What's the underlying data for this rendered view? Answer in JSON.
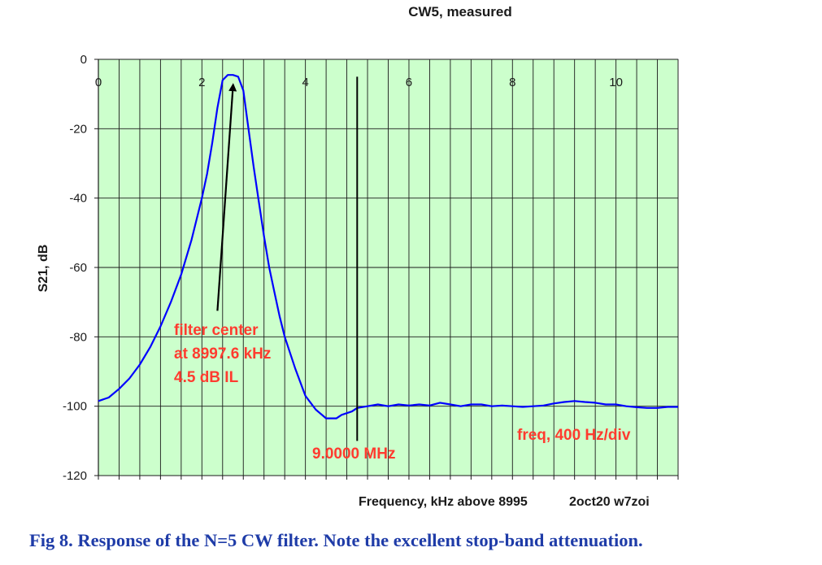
{
  "chart_data": {
    "type": "line",
    "title": "CW5, measured",
    "xlabel": "Frequency, kHz above 8995",
    "xlabel_note": "2oct20  w7zoi",
    "ylabel": "S21, dB",
    "xlim": [
      0,
      11.2
    ],
    "ylim": [
      -120,
      0
    ],
    "x_ticks": [
      0,
      2,
      4,
      6,
      8,
      10
    ],
    "x_minor_step": 0.4,
    "y_ticks": [
      0,
      -20,
      -40,
      -60,
      -80,
      -100,
      -120
    ],
    "y_grid_step": 20,
    "grid": true,
    "background_color": "#ccffcc",
    "grid_color": "#1a1a1a",
    "series": [
      {
        "color": "#0000ff",
        "x": [
          0,
          0.2,
          0.4,
          0.6,
          0.8,
          1.0,
          1.2,
          1.4,
          1.6,
          1.8,
          2.0,
          2.1,
          2.2,
          2.3,
          2.4,
          2.5,
          2.6,
          2.7,
          2.8,
          2.9,
          3.0,
          3.1,
          3.2,
          3.3,
          3.4,
          3.5,
          3.6,
          3.8,
          4.0,
          4.2,
          4.4,
          4.6,
          4.7,
          4.8,
          4.9,
          5.0,
          5.2,
          5.4,
          5.6,
          5.8,
          6.0,
          6.2,
          6.4,
          6.6,
          6.8,
          7.0,
          7.2,
          7.4,
          7.6,
          7.8,
          8.0,
          8.2,
          8.4,
          8.6,
          8.8,
          9.0,
          9.2,
          9.4,
          9.6,
          9.8,
          10.0,
          10.2,
          10.4,
          10.6,
          10.8,
          11.0,
          11.2
        ],
        "y": [
          -98.5,
          -97.5,
          -95,
          -92,
          -88,
          -83,
          -77,
          -70,
          -62,
          -52,
          -40,
          -33,
          -24,
          -14,
          -6,
          -4.5,
          -4.5,
          -5,
          -9,
          -20,
          -31,
          -41,
          -51,
          -60,
          -67,
          -74,
          -80,
          -89,
          -97,
          -101,
          -103.5,
          -103.5,
          -102.5,
          -102,
          -101.5,
          -100.5,
          -100,
          -99.5,
          -100,
          -99.5,
          -99.8,
          -99.5,
          -99.8,
          -99,
          -99.5,
          -100,
          -99.5,
          -99.5,
          -100,
          -99.8,
          -100,
          -100.2,
          -100,
          -99.8,
          -99.2,
          -98.8,
          -98.5,
          -98.8,
          -99,
          -99.5,
          -99.5,
          -100,
          -100.3,
          -100.5,
          -100.5,
          -100.2,
          -100.2
        ]
      }
    ],
    "annotations": [
      {
        "text": "filter center",
        "color": "#ff3b2f"
      },
      {
        "text": "at 8997.6 kHz",
        "color": "#ff3b2f"
      },
      {
        "text": "4.5 dB IL",
        "color": "#ff3b2f"
      },
      {
        "text": "9.0000 MHz",
        "color": "#ff3b2f"
      },
      {
        "text": "freq, 400 Hz/div",
        "color": "#ff3b2f"
      }
    ],
    "marker_line_x": 5.0,
    "arrow_target": {
      "x": 2.6,
      "y": -8
    }
  },
  "caption": "Fig 8.  Response of the N=5 CW filter.  Note the excellent stop-band attenuation."
}
